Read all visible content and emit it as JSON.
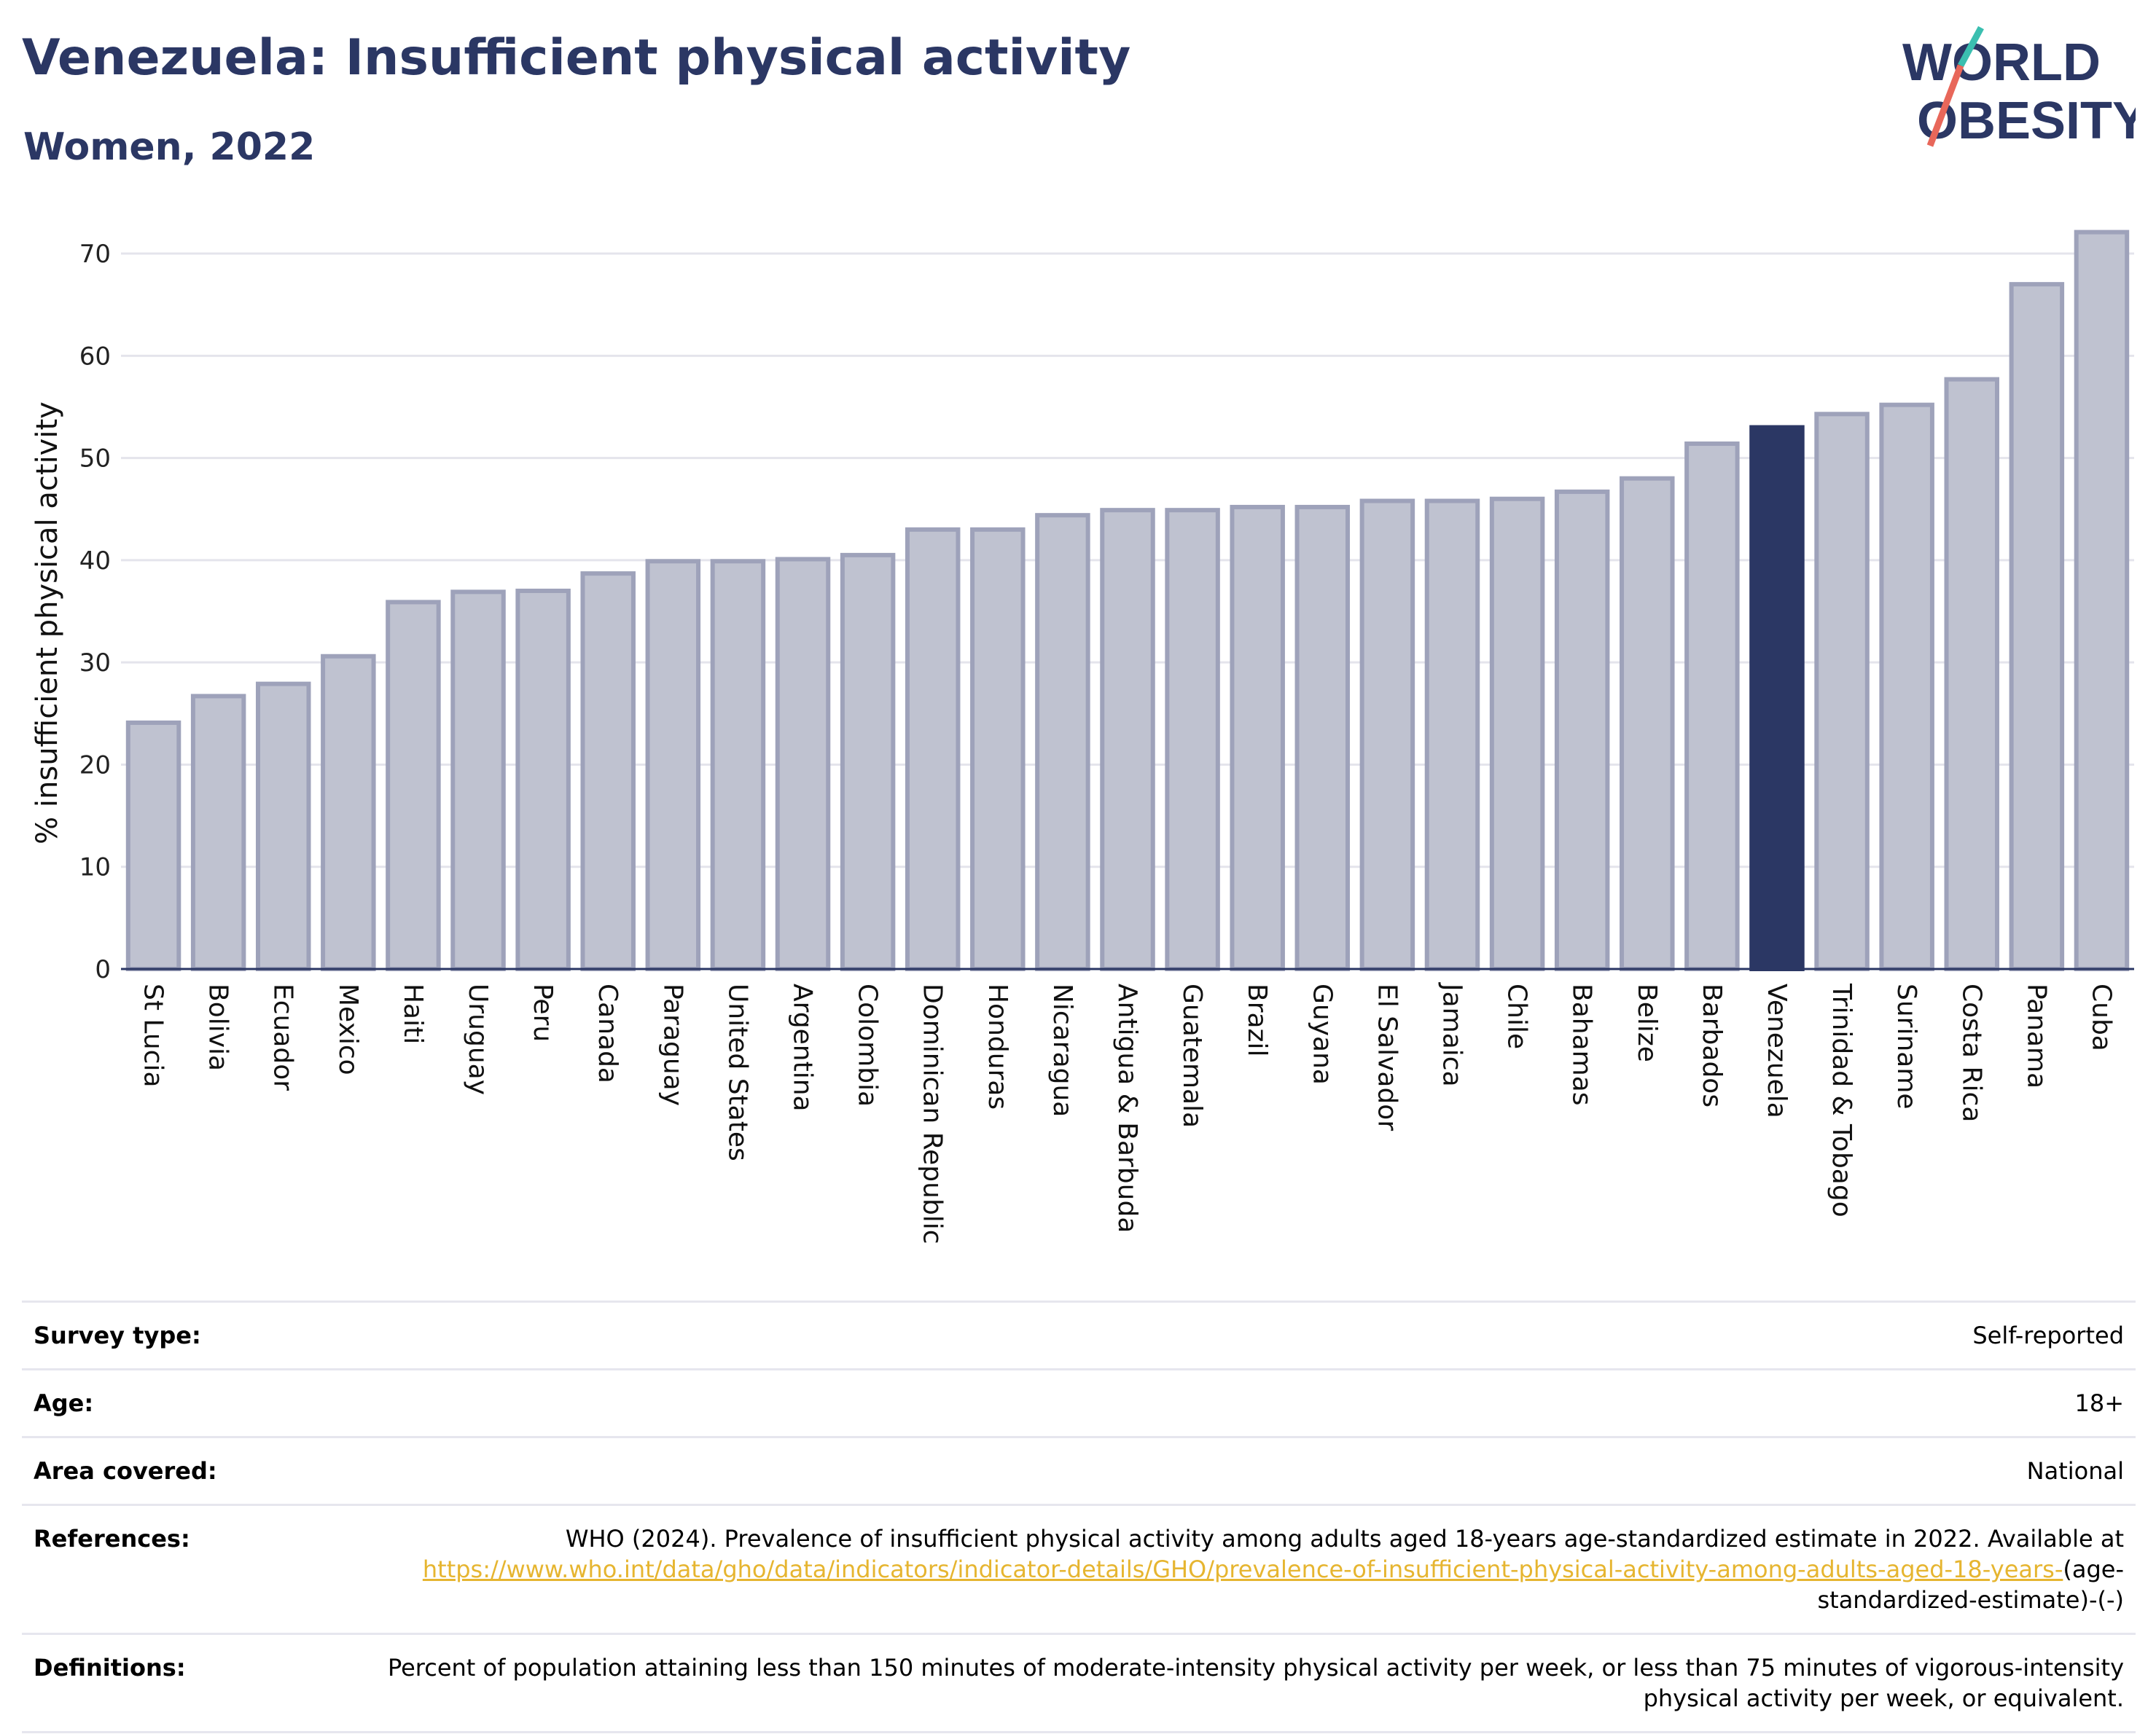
{
  "header": {
    "title": "Venezuela: Insufficient physical activity",
    "subtitle": "Women, 2022"
  },
  "logo": {
    "line1": "WORLD",
    "line2": "OBESITY"
  },
  "chart_data": {
    "type": "bar",
    "ylabel": "% insufficient physical activity",
    "ylim": [
      0,
      72
    ],
    "yticks": [
      0,
      10,
      20,
      30,
      40,
      50,
      60,
      70
    ],
    "grid": true,
    "highlight": "Venezuela",
    "colors": {
      "bar": "#bfc2d0",
      "bar_border": "#9ea2ba",
      "highlight": "#2b3764"
    },
    "categories": [
      "St Lucia",
      "Bolivia",
      "Ecuador",
      "Mexico",
      "Haiti",
      "Uruguay",
      "Peru",
      "Canada",
      "Paraguay",
      "United States",
      "Argentina",
      "Colombia",
      "Dominican Republic",
      "Honduras",
      "Nicaragua",
      "Antigua & Barbuda",
      "Guatemala",
      "Brazil",
      "Guyana",
      "El Salvador",
      "Jamaica",
      "Chile",
      "Bahamas",
      "Belize",
      "Barbados",
      "Venezuela",
      "Trinidad & Tobago",
      "Suriname",
      "Costa Rica",
      "Panama",
      "Cuba"
    ],
    "values": [
      24.1,
      26.7,
      27.9,
      30.6,
      35.9,
      36.9,
      37.0,
      38.7,
      39.9,
      39.9,
      40.1,
      40.5,
      43.0,
      43.0,
      44.4,
      44.9,
      44.9,
      45.2,
      45.2,
      45.8,
      45.8,
      46.0,
      46.7,
      48.0,
      51.4,
      53.0,
      54.3,
      55.2,
      57.7,
      67.0,
      72.1
    ]
  },
  "meta": {
    "survey_type_label": "Survey type:",
    "survey_type_value": "Self-reported",
    "age_label": "Age:",
    "age_value": "18+",
    "area_label": "Area covered:",
    "area_value": "National",
    "references_label": "References:",
    "references_text": "WHO (2024). Prevalence of insufficient physical activity among adults aged 18-years age-standardized estimate in 2022. Available at",
    "references_link": "https://www.who.int/data/gho/data/indicators/indicator-details/GHO/prevalence-of-insufficient-physical-activity-among-adults-aged-18-years-",
    "references_suffix": "(age-standardized-estimate)-(-)",
    "definitions_label": "Definitions:",
    "definitions_text": "Percent of population attaining less than 150 minutes of moderate-intensity physical activity per week, or less than 75 minutes of vigorous-intensity physical activity per week, or equivalent."
  }
}
